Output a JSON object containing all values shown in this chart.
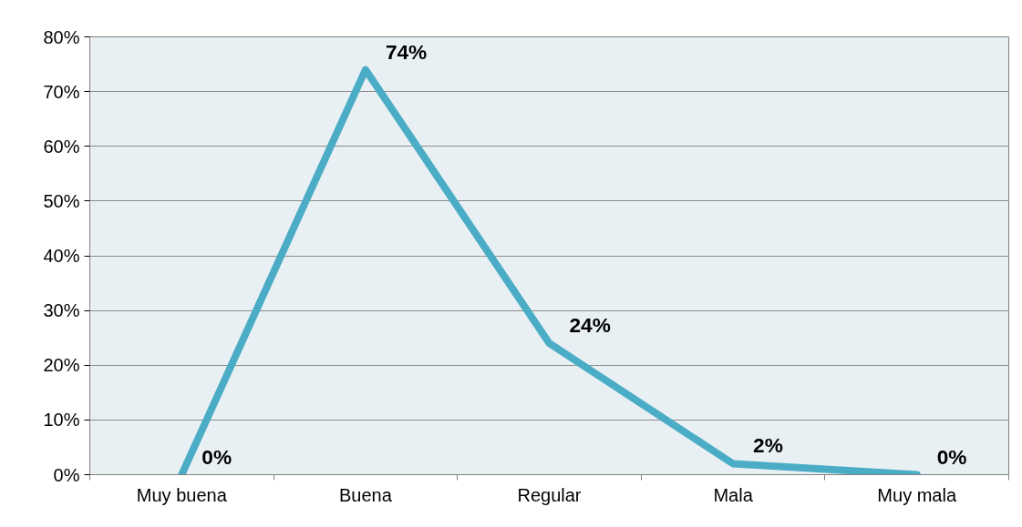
{
  "chart_data": {
    "type": "line",
    "categories": [
      "Muy buena",
      "Buena",
      "Regular",
      "Mala",
      "Muy mala"
    ],
    "series": [
      {
        "color": "#4bacc6",
        "values": [
          0,
          74,
          24,
          2,
          0
        ],
        "value_labels": [
          "0%",
          "74%",
          "24%",
          "2%",
          "0%"
        ]
      }
    ],
    "ylim": [
      0,
      80
    ],
    "yticks": [
      {
        "value": 0,
        "label": "0%"
      },
      {
        "value": 10,
        "label": "10%"
      },
      {
        "value": 20,
        "label": "20%"
      },
      {
        "value": 30,
        "label": "30%"
      },
      {
        "value": 40,
        "label": "40%"
      },
      {
        "value": 50,
        "label": "50%"
      },
      {
        "value": 60,
        "label": "60%"
      },
      {
        "value": 70,
        "label": "70%"
      },
      {
        "value": 80,
        "label": "80%"
      }
    ],
    "grid": "y",
    "marker": "none",
    "line_style": "solid"
  }
}
